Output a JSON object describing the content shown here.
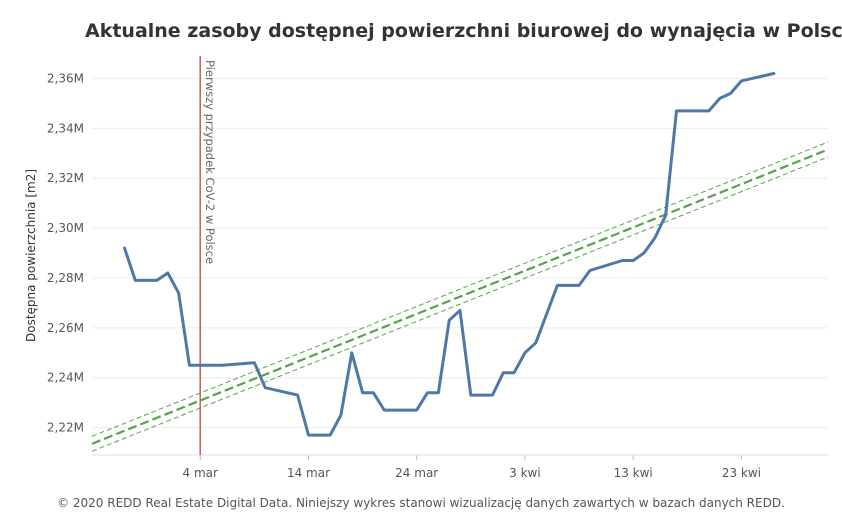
{
  "chart_data": {
    "type": "line",
    "title": "Aktualne zasoby dostępnej powierzchni biurowej do wynajęcia w Polsce",
    "ylabel": "Dostępna powierzchnia [m2]",
    "xlabel": "",
    "x_range": [
      "2020-02-23",
      "2020-05-01"
    ],
    "ylim": [
      2209000,
      2369000
    ],
    "y_ticks": [
      {
        "value": 2220000,
        "label": "2,22M"
      },
      {
        "value": 2240000,
        "label": "2,24M"
      },
      {
        "value": 2260000,
        "label": "2,26M"
      },
      {
        "value": 2280000,
        "label": "2,28M"
      },
      {
        "value": 2300000,
        "label": "2,30M"
      },
      {
        "value": 2320000,
        "label": "2,32M"
      },
      {
        "value": 2340000,
        "label": "2,34M"
      },
      {
        "value": 2360000,
        "label": "2,36M"
      }
    ],
    "x_ticks": [
      {
        "date": "2020-03-04",
        "label": "4 mar"
      },
      {
        "date": "2020-03-14",
        "label": "14 mar"
      },
      {
        "date": "2020-03-24",
        "label": "24 mar"
      },
      {
        "date": "2020-04-03",
        "label": "3 kwi"
      },
      {
        "date": "2020-04-13",
        "label": "13 kwi"
      },
      {
        "date": "2020-04-23",
        "label": "23 kwi"
      }
    ],
    "grid": true,
    "series": [
      {
        "color": "#4e79a7",
        "x": [
          "2020-02-26",
          "2020-02-27",
          "2020-02-29",
          "2020-03-01",
          "2020-03-02",
          "2020-03-03",
          "2020-03-04",
          "2020-03-06",
          "2020-03-09",
          "2020-03-10",
          "2020-03-13",
          "2020-03-14",
          "2020-03-16",
          "2020-03-17",
          "2020-03-18",
          "2020-03-19",
          "2020-03-20",
          "2020-03-21",
          "2020-03-24",
          "2020-03-25",
          "2020-03-26",
          "2020-03-27",
          "2020-03-28",
          "2020-03-29",
          "2020-03-31",
          "2020-04-01",
          "2020-04-02",
          "2020-04-03",
          "2020-04-04",
          "2020-04-06",
          "2020-04-07",
          "2020-04-08",
          "2020-04-09",
          "2020-04-12",
          "2020-04-13",
          "2020-04-14",
          "2020-04-15",
          "2020-04-16",
          "2020-04-17",
          "2020-04-20",
          "2020-04-21",
          "2020-04-22",
          "2020-04-23",
          "2020-04-24",
          "2020-04-26"
        ],
        "values": [
          2292000,
          2279000,
          2279000,
          2282000,
          2274000,
          2245000,
          2245000,
          2245000,
          2246000,
          2236000,
          2233000,
          2217000,
          2217000,
          2225000,
          2250000,
          2234000,
          2234000,
          2227000,
          2227000,
          2234000,
          2234000,
          2263000,
          2267000,
          2233000,
          2233000,
          2242000,
          2242000,
          2250000,
          2254000,
          2277000,
          2277000,
          2277000,
          2283000,
          2287000,
          2287000,
          2290000,
          2296000,
          2305000,
          2347000,
          2347000,
          2352000,
          2354000,
          2359000,
          2360000,
          2362000
        ]
      }
    ],
    "trend": {
      "color": "#59a14f",
      "x": [
        "2020-02-23",
        "2020-05-01"
      ],
      "values": [
        2213500,
        2331500
      ],
      "band": 3000
    },
    "annotations": [
      {
        "date": "2020-03-04",
        "text": "Pierwszy przypadek CoV-2 w Polsce",
        "color": "#d45f5f"
      }
    ]
  },
  "footer": "© 2020 REDD Real Estate Digital Data. Niniejszy wykres stanowi wizualizację danych zawartych w bazach danych REDD."
}
